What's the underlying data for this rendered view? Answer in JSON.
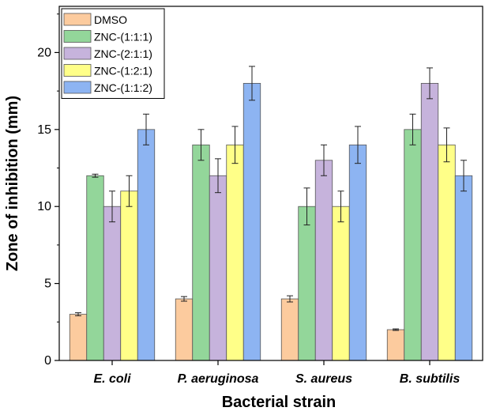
{
  "chart_data": {
    "type": "bar",
    "xlabel": "Bacterial strain",
    "ylabel": "Zone of inhibition (mm)",
    "ylim": [
      0,
      23
    ],
    "yticks": [
      0,
      5,
      10,
      15,
      20
    ],
    "categories": [
      "E. coli",
      "P. aeruginosa",
      "S. aureus",
      "B. subtilis"
    ],
    "legend_position": "top-left",
    "grid": false,
    "series": [
      {
        "name": "DMSO",
        "color": "#FCCB9E",
        "values": [
          3,
          4,
          4,
          2
        ],
        "errors": [
          0.1,
          0.15,
          0.2,
          0.05
        ]
      },
      {
        "name": "ZNC-(1:1:1)",
        "color": "#93D69A",
        "values": [
          12,
          14,
          10,
          15
        ],
        "errors": [
          0.1,
          1.0,
          1.2,
          1.0
        ]
      },
      {
        "name": "ZNC-(2:1:1)",
        "color": "#C6B3DC",
        "values": [
          10,
          12,
          13,
          18
        ],
        "errors": [
          1.0,
          1.1,
          1.0,
          1.0
        ]
      },
      {
        "name": "ZNC-(1:2:1)",
        "color": "#FFFF88",
        "values": [
          11,
          14,
          10,
          14
        ],
        "errors": [
          1.0,
          1.2,
          1.0,
          1.1
        ]
      },
      {
        "name": "ZNC-(1:1:2)",
        "color": "#8DB4F2",
        "values": [
          15,
          18,
          14,
          12
        ],
        "errors": [
          1.0,
          1.1,
          1.2,
          1.0
        ]
      }
    ]
  }
}
